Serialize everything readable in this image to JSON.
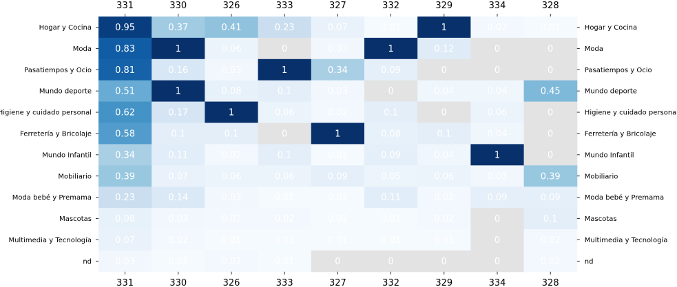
{
  "chart_data": {
    "type": "heatmap",
    "columns": [
      "331",
      "330",
      "326",
      "333",
      "327",
      "332",
      "329",
      "334",
      "328"
    ],
    "rows": [
      "Hogar y Cocina",
      "Moda",
      "Pasatiempos y Ocio",
      "Mundo deporte",
      "Higiene y cuidado personal",
      "Ferretería y Bricolaje",
      "Mundo Infantil",
      "Mobiliario",
      "Moda bebé y Premama",
      "Mascotas",
      "Multimedia y Tecnología",
      "nd"
    ],
    "values": [
      [
        0.95,
        0.37,
        0.41,
        0.23,
        0.07,
        0.01,
        1.0,
        0.02,
        0.01
      ],
      [
        0.83,
        1.0,
        0.06,
        0.0,
        0.03,
        1.0,
        0.12,
        0.0,
        0.0
      ],
      [
        0.81,
        0.16,
        0.03,
        1.0,
        0.34,
        0.09,
        0.0,
        0.0,
        0.0
      ],
      [
        0.51,
        1.0,
        0.08,
        0.1,
        0.03,
        0.0,
        0.04,
        0.04,
        0.45
      ],
      [
        0.62,
        0.17,
        1.0,
        0.06,
        0.02,
        0.1,
        0.0,
        0.06,
        0.0
      ],
      [
        0.58,
        0.1,
        0.1,
        0.0,
        1.0,
        0.08,
        0.1,
        0.04,
        0.0
      ],
      [
        0.34,
        0.11,
        0.02,
        0.1,
        0.01,
        0.09,
        0.04,
        1.0,
        0.0
      ],
      [
        0.39,
        0.07,
        0.06,
        0.06,
        0.09,
        0.05,
        0.06,
        0.03,
        0.39
      ],
      [
        0.23,
        0.14,
        0.03,
        0.01,
        0.01,
        0.11,
        0.02,
        0.09,
        0.09
      ],
      [
        0.08,
        0.03,
        0.02,
        0.02,
        0.01,
        0.01,
        0.02,
        0.0,
        0.1
      ],
      [
        0.07,
        0.02,
        0.01,
        0.01,
        0.01,
        0.01,
        0.01,
        0.0,
        0.02
      ],
      [
        0.03,
        0.01,
        0.02,
        0.01,
        0.0,
        0.0,
        0.0,
        0.0,
        0.02
      ]
    ],
    "masked": [
      [
        false,
        false,
        false,
        false,
        false,
        false,
        false,
        false,
        false
      ],
      [
        false,
        false,
        false,
        true,
        false,
        false,
        false,
        true,
        true
      ],
      [
        false,
        false,
        false,
        false,
        false,
        false,
        true,
        true,
        true
      ],
      [
        false,
        false,
        false,
        false,
        false,
        true,
        false,
        false,
        false
      ],
      [
        false,
        false,
        false,
        false,
        false,
        false,
        true,
        false,
        true
      ],
      [
        false,
        false,
        false,
        true,
        false,
        false,
        false,
        false,
        true
      ],
      [
        false,
        false,
        false,
        false,
        false,
        false,
        false,
        false,
        true
      ],
      [
        false,
        false,
        false,
        false,
        false,
        false,
        false,
        false,
        false
      ],
      [
        false,
        false,
        false,
        false,
        false,
        false,
        false,
        false,
        false
      ],
      [
        false,
        false,
        false,
        false,
        false,
        false,
        false,
        true,
        false
      ],
      [
        false,
        false,
        false,
        false,
        false,
        false,
        false,
        true,
        false
      ],
      [
        false,
        false,
        false,
        false,
        true,
        true,
        true,
        true,
        false
      ]
    ],
    "colormap": "Blues",
    "value_range": [
      0,
      1
    ],
    "colors": {
      "masked": "#e3e3e3",
      "dark_text": "#ffffff",
      "light_text": "#ffffff"
    },
    "column_labels_top": true,
    "column_labels_bottom": true,
    "row_labels_left": true,
    "row_labels_right": true,
    "annotations": true
  }
}
